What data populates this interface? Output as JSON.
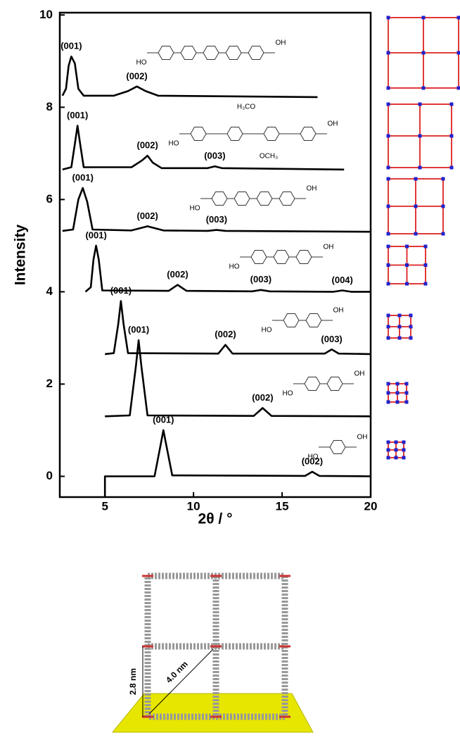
{
  "chart_data": {
    "type": "line",
    "xlabel": "2θ / °",
    "ylabel": "Intensity",
    "xlim": [
      2.45,
      20
    ],
    "ylim": [
      -0.45,
      10.05
    ],
    "xticks": [
      5,
      10,
      15,
      20
    ],
    "yticks": [
      0,
      2,
      4,
      6,
      8,
      10
    ],
    "series": [
      {
        "color": "#000000",
        "x": [
          2.6,
          2.8,
          2.95,
          3.1,
          3.3,
          3.5,
          3.8,
          5.5,
          6.3,
          6.8,
          7.3,
          8.0,
          17.0
        ],
        "values": [
          8.25,
          8.4,
          8.9,
          9.1,
          8.95,
          8.4,
          8.25,
          8.25,
          8.35,
          8.45,
          8.35,
          8.25,
          8.22
        ],
        "peak_labels": [
          "(001)",
          "(002)"
        ],
        "molecule_labels": [
          "HO",
          "OH"
        ]
      },
      {
        "color": "#000000",
        "x": [
          2.6,
          3.1,
          3.3,
          3.45,
          3.6,
          3.8,
          6.5,
          7.1,
          7.4,
          7.7,
          8.2,
          10.8,
          11.2,
          11.6,
          18.5
        ],
        "values": [
          6.65,
          6.7,
          7.2,
          7.6,
          7.2,
          6.7,
          6.7,
          6.85,
          6.95,
          6.8,
          6.68,
          6.68,
          6.72,
          6.68,
          6.65
        ],
        "peak_labels": [
          "(001)",
          "(002)",
          "(003)"
        ],
        "molecule_labels": [
          "HO",
          "OH",
          "H₃CO",
          "OCH₃"
        ]
      },
      {
        "color": "#000000",
        "x": [
          2.6,
          3.2,
          3.5,
          3.75,
          4.0,
          4.3,
          6.5,
          7.4,
          8.3,
          10.8,
          11.3,
          11.8,
          20
        ],
        "values": [
          5.32,
          5.35,
          6.0,
          6.25,
          5.95,
          5.35,
          5.33,
          5.42,
          5.33,
          5.32,
          5.34,
          5.32,
          5.3
        ],
        "peak_labels": [
          "(001)",
          "(002)",
          "(003)"
        ],
        "molecule_labels": [
          "HO",
          "OH"
        ]
      },
      {
        "color": "#000000",
        "x": [
          3.9,
          4.2,
          4.35,
          4.5,
          4.65,
          4.85,
          8.6,
          9.1,
          9.6,
          13.3,
          13.8,
          14.3,
          17.9,
          18.4,
          18.9,
          20
        ],
        "values": [
          4.0,
          4.1,
          4.7,
          5.0,
          4.7,
          4.03,
          4.02,
          4.15,
          4.02,
          4.01,
          4.04,
          4.01,
          4.0,
          4.03,
          4.0,
          4.0
        ],
        "peak_labels": [
          "(001)",
          "(002)",
          "(003)",
          "(004)"
        ],
        "molecule_labels": [
          "HO",
          "OH"
        ]
      },
      {
        "color": "#000000",
        "x": [
          5.0,
          5.5,
          5.75,
          5.9,
          6.05,
          6.3,
          11.4,
          11.8,
          12.2,
          17.4,
          17.8,
          18.2,
          20
        ],
        "values": [
          2.65,
          2.67,
          3.3,
          3.8,
          3.3,
          2.67,
          2.66,
          2.85,
          2.66,
          2.66,
          2.75,
          2.66,
          2.65
        ],
        "peak_labels": [
          "(001)",
          "(002)",
          "(003)"
        ],
        "molecule_labels": [
          "HO",
          "OH"
        ]
      },
      {
        "color": "#000000",
        "x": [
          5.0,
          6.4,
          6.75,
          6.9,
          7.05,
          7.4,
          13.4,
          13.9,
          14.4,
          20
        ],
        "values": [
          1.3,
          1.32,
          2.4,
          2.95,
          2.4,
          1.32,
          1.31,
          1.48,
          1.31,
          1.3
        ],
        "peak_labels": [
          "(001)",
          "(002)"
        ],
        "molecule_labels": [
          "HO",
          "OH"
        ]
      },
      {
        "color": "#000000",
        "x": [
          5.0,
          5.0,
          7.8,
          8.15,
          8.3,
          8.45,
          8.8,
          16.3,
          16.7,
          17.1,
          20
        ],
        "values": [
          -0.45,
          0,
          0,
          0.7,
          1.0,
          0.7,
          0.02,
          0.01,
          0.1,
          0.01,
          0
        ],
        "peak_labels": [
          "(001)",
          "(002)"
        ],
        "molecule_labels": [
          "HO",
          "OH"
        ]
      }
    ]
  },
  "structure_image": {
    "labels": [
      "2.8 nm",
      "4.0 nm"
    ]
  }
}
